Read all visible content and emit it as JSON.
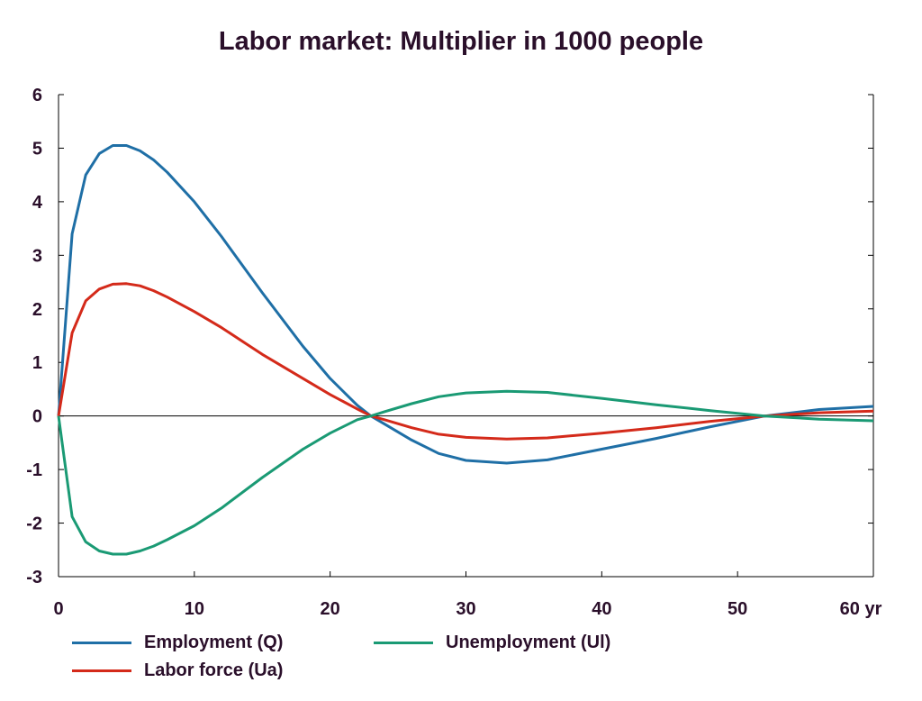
{
  "colors": {
    "employment": "#1f6fa6",
    "labor_force": "#d42a1a",
    "unemployment": "#1a9a74",
    "axis": "#000000",
    "text": "#2a0f2a"
  },
  "chart_data": {
    "type": "line",
    "title": "Labor market: Multiplier in 1000 people",
    "xlabel": "",
    "ylabel": "",
    "xlim": [
      0,
      60
    ],
    "ylim": [
      -3,
      6
    ],
    "x_ticks": [
      0,
      10,
      20,
      30,
      40,
      50,
      60
    ],
    "x_tick_labels": [
      "0",
      "10",
      "20",
      "30",
      "40",
      "50",
      "60 yr"
    ],
    "y_ticks": [
      6,
      5,
      4,
      3,
      2,
      1,
      0,
      -1,
      -2,
      -3
    ],
    "y_tick_labels": [
      "6",
      "5",
      "4",
      "3",
      "2",
      "1",
      "0",
      "-1",
      "-2",
      "-3"
    ],
    "grid": false,
    "zero_line": true,
    "legend_position": "bottom",
    "x": [
      0,
      1,
      2,
      3,
      4,
      5,
      6,
      7,
      8,
      10,
      12,
      15,
      18,
      20,
      22,
      23,
      24,
      26,
      28,
      30,
      33,
      36,
      40,
      44,
      48,
      52,
      56,
      60
    ],
    "series": [
      {
        "name": "Employment (Q)",
        "color_key": "employment",
        "values": [
          0,
          3.4,
          4.5,
          4.9,
          5.05,
          5.05,
          4.95,
          4.78,
          4.55,
          4.0,
          3.35,
          2.3,
          1.3,
          0.7,
          0.2,
          0.0,
          -0.15,
          -0.45,
          -0.7,
          -0.83,
          -0.88,
          -0.82,
          -0.62,
          -0.42,
          -0.2,
          0.0,
          0.12,
          0.18
        ]
      },
      {
        "name": "Labor force (Ua)",
        "color_key": "labor_force",
        "values": [
          0,
          1.55,
          2.15,
          2.37,
          2.46,
          2.47,
          2.43,
          2.34,
          2.22,
          1.95,
          1.65,
          1.15,
          0.7,
          0.4,
          0.13,
          0.0,
          -0.07,
          -0.22,
          -0.34,
          -0.4,
          -0.43,
          -0.41,
          -0.32,
          -0.22,
          -0.1,
          0.0,
          0.06,
          0.09
        ]
      },
      {
        "name": "Unemployment (Ul)",
        "color_key": "unemployment",
        "values": [
          0,
          -1.88,
          -2.35,
          -2.52,
          -2.58,
          -2.58,
          -2.52,
          -2.43,
          -2.31,
          -2.05,
          -1.72,
          -1.15,
          -0.62,
          -0.32,
          -0.07,
          0.0,
          0.08,
          0.23,
          0.36,
          0.43,
          0.46,
          0.44,
          0.33,
          0.21,
          0.1,
          0.0,
          -0.06,
          -0.09
        ]
      }
    ]
  }
}
